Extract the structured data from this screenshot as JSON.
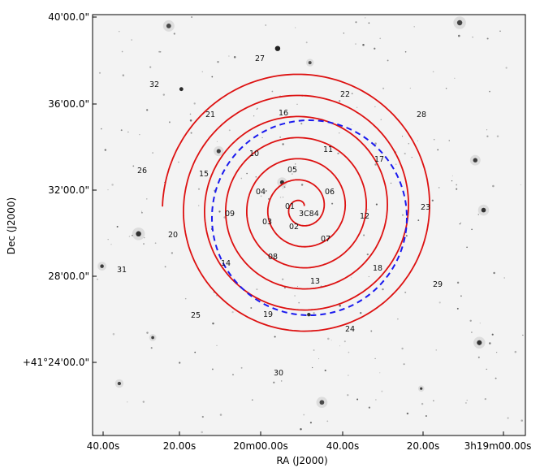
{
  "chart_data": {
    "type": "scatter",
    "title": "",
    "xlabel": "RA (J2000)",
    "ylabel": "Dec (J2000)",
    "x_ticks": [
      "40.00s",
      "20.00s",
      "20m00.00s",
      "40.00s",
      "20.00s",
      "3h19m00.00s"
    ],
    "y_ticks": [
      "40'00.0\"",
      "36'00.0\"",
      "32'00.0\"",
      "28'00.0\"",
      "+41°24'00.0\""
    ],
    "background": "grayscale sky image with scattered stars",
    "grid": false,
    "spiral": {
      "color": "#dd1111",
      "turns": 6.5,
      "center_label": "3C84"
    },
    "dashed_circle": {
      "color": "#1a1aee",
      "style": "dashed"
    },
    "fields": [
      {
        "id": "01",
        "label": "01"
      },
      {
        "id": "02",
        "label": "02"
      },
      {
        "id": "03",
        "label": "03"
      },
      {
        "id": "04",
        "label": "04"
      },
      {
        "id": "05",
        "label": "05"
      },
      {
        "id": "06",
        "label": "06"
      },
      {
        "id": "07",
        "label": "07"
      },
      {
        "id": "08",
        "label": "08"
      },
      {
        "id": "09",
        "label": "09"
      },
      {
        "id": "10",
        "label": "10"
      },
      {
        "id": "11",
        "label": "11"
      },
      {
        "id": "12",
        "label": "12"
      },
      {
        "id": "13",
        "label": "13"
      },
      {
        "id": "14",
        "label": "14"
      },
      {
        "id": "15",
        "label": "15"
      },
      {
        "id": "16",
        "label": "16"
      },
      {
        "id": "17",
        "label": "17"
      },
      {
        "id": "18",
        "label": "18"
      },
      {
        "id": "19",
        "label": "19"
      },
      {
        "id": "20",
        "label": "20"
      },
      {
        "id": "21",
        "label": "21"
      },
      {
        "id": "22",
        "label": "22"
      },
      {
        "id": "23",
        "label": "23"
      },
      {
        "id": "24",
        "label": "24"
      },
      {
        "id": "25",
        "label": "25"
      },
      {
        "id": "26",
        "label": "26"
      },
      {
        "id": "27",
        "label": "27"
      },
      {
        "id": "28",
        "label": "28"
      },
      {
        "id": "29",
        "label": "29"
      },
      {
        "id": "30",
        "label": "30"
      },
      {
        "id": "31",
        "label": "31"
      },
      {
        "id": "32",
        "label": "32"
      }
    ]
  }
}
